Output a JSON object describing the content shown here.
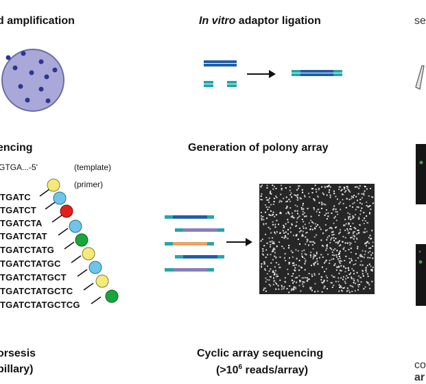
{
  "headings": {
    "amplification": "d amplification",
    "ligation_italic": "In vitro",
    "ligation_rest": " adaptor ligation",
    "right_top": "se",
    "sequencing": "encing",
    "polony": "Generation of polony array",
    "electrophoresis_line1": "orsesis",
    "electrophoresis_line2": "pillary)",
    "cyclic_line1": "Cyclic array sequencing",
    "cyclic_line2_pre": "(>10",
    "cyclic_line2_sup": "6",
    "cyclic_line2_post": " reads/array)",
    "right_bottom_1": "co",
    "right_bottom_2": "ar"
  },
  "template_label": {
    "strand": "GTGA...-5'",
    "template": "(template)",
    "primer": "(primer)"
  },
  "sequence_ladder": [
    {
      "text": "TGATC",
      "color": "#f5ea79"
    },
    {
      "text": "TGATCT",
      "color": "#6fc4ea"
    },
    {
      "text": "TGATCTA",
      "color": "#e0201c"
    },
    {
      "text": "TGATCTAT",
      "color": "#6fc4ea"
    },
    {
      "text": "TGATCTATG",
      "color": "#1aa53a"
    },
    {
      "text": "TGATCTATGC",
      "color": "#f5ea79"
    },
    {
      "text": "TGATCTATGCT",
      "color": "#6fc4ea"
    },
    {
      "text": "TGATCTATGCTC",
      "color": "#f5ea79"
    },
    {
      "text": "TGATCTATGCTCG",
      "color": "#1aa53a"
    }
  ],
  "colors": {
    "adaptor_teal": "#24a7a8",
    "insert_blue": "#1f5ea8",
    "insert_purple": "#8a7cc0",
    "insert_orange": "#f0a060",
    "plate": "#a9a8d8",
    "colony": "#2f3490",
    "array_bg": "#262626"
  }
}
